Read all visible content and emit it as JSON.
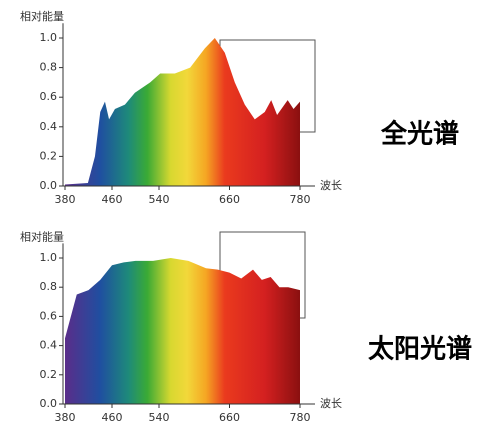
{
  "chart_data": [
    {
      "type": "area",
      "y_label": "相对能量",
      "x_label": "波长",
      "annotation": "全光谱",
      "x": [
        380,
        419,
        431,
        440,
        448,
        455,
        465,
        482,
        499,
        525,
        542,
        567,
        593,
        618,
        635,
        652,
        669,
        686,
        703,
        720,
        731,
        741,
        759,
        769,
        780
      ],
      "values": [
        0.01,
        0.02,
        0.2,
        0.5,
        0.57,
        0.45,
        0.52,
        0.55,
        0.63,
        0.7,
        0.76,
        0.76,
        0.8,
        0.93,
        1.0,
        0.9,
        0.7,
        0.55,
        0.45,
        0.5,
        0.58,
        0.48,
        0.58,
        0.52,
        0.57
      ],
      "xlim": [
        380,
        780
      ],
      "ylim": [
        0,
        1.1
      ],
      "xticks": [
        380,
        460,
        540,
        660,
        780
      ],
      "yticks": [
        {
          "value": 0,
          "label": "0.0"
        },
        {
          "value": 0.2,
          "label": "0.2"
        },
        {
          "value": 0.4,
          "label": "0.4"
        },
        {
          "value": 0.6,
          "label": "0.6"
        },
        {
          "value": 0.8,
          "label": "0.8"
        },
        {
          "value": 1,
          "label": "1.0"
        }
      ]
    },
    {
      "type": "area",
      "y_label": "相对能量",
      "x_label": "波长",
      "annotation": "太阳光谱",
      "x": [
        380,
        390,
        400,
        420,
        440,
        460,
        480,
        500,
        530,
        560,
        590,
        620,
        640,
        660,
        680,
        700,
        715,
        730,
        745,
        760,
        780
      ],
      "values": [
        0.45,
        0.6,
        0.75,
        0.78,
        0.85,
        0.95,
        0.97,
        0.98,
        0.98,
        1.0,
        0.98,
        0.93,
        0.92,
        0.9,
        0.86,
        0.92,
        0.85,
        0.87,
        0.8,
        0.8,
        0.78
      ],
      "xlim": [
        380,
        780
      ],
      "ylim": [
        0,
        1.1
      ],
      "xticks": [
        380,
        460,
        540,
        660,
        780
      ],
      "yticks": [
        {
          "value": 0,
          "label": "0.0"
        },
        {
          "value": 0.2,
          "label": "0.2"
        },
        {
          "value": 0.4,
          "label": "0.4"
        },
        {
          "value": 0.6,
          "label": "0.6"
        },
        {
          "value": 0.8,
          "label": "0.8"
        },
        {
          "value": 1,
          "label": "1.0"
        }
      ]
    }
  ]
}
